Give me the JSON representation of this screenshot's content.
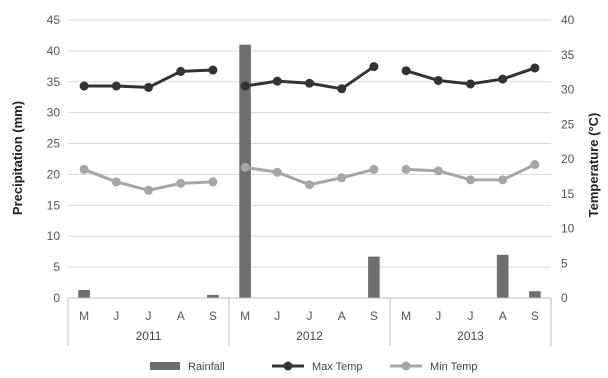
{
  "chart_data": {
    "type": "bar+line",
    "groups": [
      "2011",
      "2012",
      "2013"
    ],
    "months": [
      "M",
      "J",
      "J",
      "A",
      "S"
    ],
    "ylabel_left": "Precipitation (mm)",
    "ylabel_right": "Temperature (°C)",
    "ylim_left": [
      0,
      45
    ],
    "yticks_left": [
      "0",
      "5",
      "10",
      "15",
      "20",
      "25",
      "30",
      "35",
      "40",
      "45"
    ],
    "ylim_right": [
      0,
      40
    ],
    "yticks_right": [
      "0",
      "5",
      "10",
      "15",
      "20",
      "25",
      "30",
      "35",
      "40"
    ],
    "legend_position": "bottom",
    "series": [
      {
        "name": "Rainfall",
        "kind": "bar",
        "axis": "left",
        "color": "#6e6e6e",
        "values": [
          1.3,
          0,
          0,
          0,
          0.5,
          41,
          0,
          0,
          0,
          6.7,
          0,
          0,
          0,
          7,
          1.1
        ]
      },
      {
        "name": "Max Temp",
        "kind": "line",
        "axis": "right",
        "color": "#333333",
        "values": [
          30.5,
          30.5,
          30.3,
          32.6,
          32.8,
          30.5,
          31.2,
          30.9,
          30.1,
          33.3,
          32.7,
          31.3,
          30.8,
          31.5,
          33.1
        ]
      },
      {
        "name": "Min Temp",
        "kind": "line",
        "axis": "right",
        "color": "#a6a6a6",
        "values": [
          18.5,
          16.7,
          15.5,
          16.5,
          16.7,
          18.8,
          18.1,
          16.3,
          17.3,
          18.5,
          18.5,
          18.3,
          17.0,
          17.0,
          19.2
        ]
      }
    ]
  }
}
